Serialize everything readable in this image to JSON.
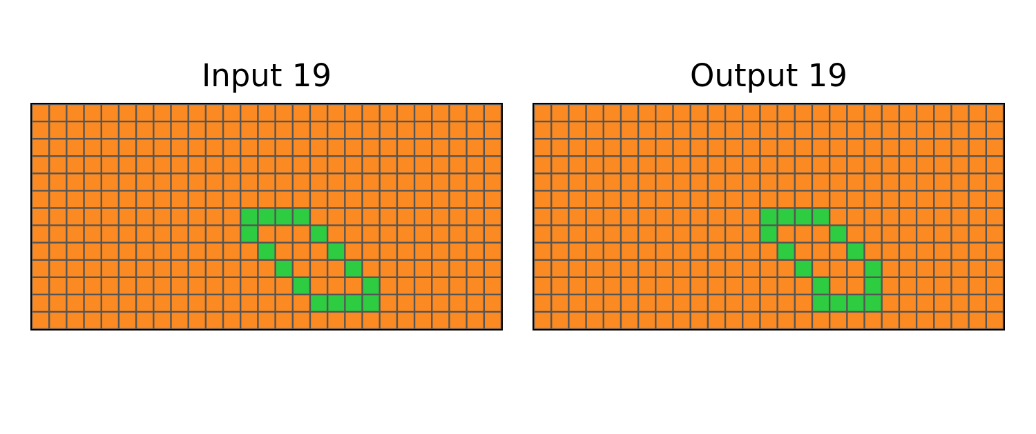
{
  "palette": {
    "0": "#fb8a22",
    "1": "#2ecc40"
  },
  "grid_line_color": "#555555",
  "panels": [
    {
      "title": "Input 19",
      "rows": 13,
      "cols": 27,
      "cells": [
        [
          6,
          12
        ],
        [
          6,
          13
        ],
        [
          6,
          14
        ],
        [
          6,
          15
        ],
        [
          7,
          12
        ],
        [
          7,
          16
        ],
        [
          8,
          13
        ],
        [
          8,
          17
        ],
        [
          9,
          14
        ],
        [
          9,
          18
        ],
        [
          10,
          15
        ],
        [
          10,
          19
        ],
        [
          11,
          16
        ],
        [
          11,
          17
        ],
        [
          11,
          18
        ],
        [
          11,
          19
        ]
      ]
    },
    {
      "title": "Output 19",
      "rows": 13,
      "cols": 27,
      "cells": [
        [
          6,
          13
        ],
        [
          6,
          14
        ],
        [
          6,
          15
        ],
        [
          6,
          16
        ],
        [
          7,
          13
        ],
        [
          7,
          17
        ],
        [
          8,
          14
        ],
        [
          8,
          18
        ],
        [
          9,
          15
        ],
        [
          9,
          19
        ],
        [
          10,
          16
        ],
        [
          10,
          19
        ],
        [
          11,
          16
        ],
        [
          11,
          17
        ],
        [
          11,
          18
        ],
        [
          11,
          19
        ]
      ]
    }
  ]
}
